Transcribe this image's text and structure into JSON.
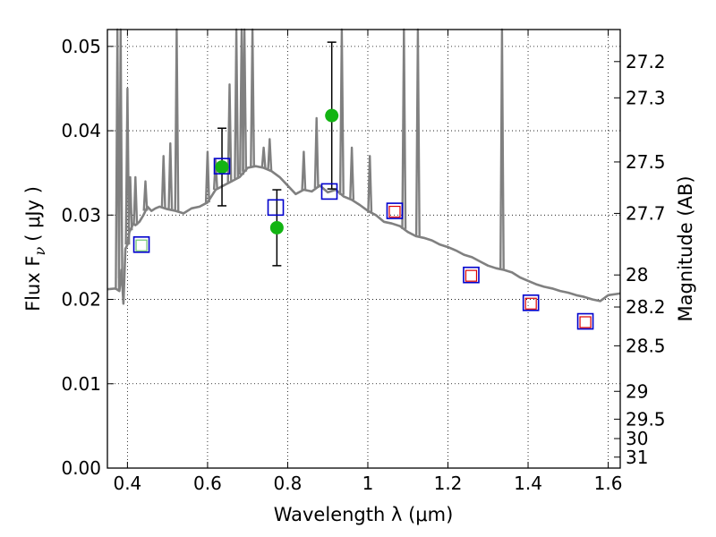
{
  "chart_data": {
    "type": "scatter",
    "xlabel": "Wavelength  λ (μm)",
    "ylabel": "Flux  F",
    "ylabel_sub": "ν",
    "ylabel_unit": "( μJy )",
    "y2label": "Magnitude (AB)",
    "xlim": [
      0.35,
      1.63
    ],
    "ylim": [
      0.0,
      0.052
    ],
    "x_ticks": [
      0.4,
      0.6,
      0.8,
      1.0,
      1.2,
      1.4,
      1.6
    ],
    "x_tick_labels": [
      "0.4",
      "0.6",
      "0.8",
      "1",
      "1.2",
      "1.4",
      "1.6"
    ],
    "y_ticks": [
      0.0,
      0.01,
      0.02,
      0.03,
      0.04,
      0.05
    ],
    "y_tick_labels": [
      "0.00",
      "0.01",
      "0.02",
      "0.03",
      "0.04",
      "0.05"
    ],
    "mag_ticks": [
      {
        "label": "27.2",
        "flux": 0.0482
      },
      {
        "label": "27.3",
        "flux": 0.0439
      },
      {
        "label": "27.5",
        "flux": 0.0363
      },
      {
        "label": "27.7",
        "flux": 0.0302
      },
      {
        "label": "28",
        "flux": 0.0229
      },
      {
        "label": "28.2",
        "flux": 0.0191
      },
      {
        "label": "28.5",
        "flux": 0.0145
      },
      {
        "label": "29",
        "flux": 0.0091
      },
      {
        "label": "29.5",
        "flux": 0.0058
      },
      {
        "label": "30",
        "flux": 0.0035
      },
      {
        "label": "31",
        "flux": 0.0013
      }
    ],
    "grid": true,
    "series": [
      {
        "type": "line",
        "color": "#808080",
        "x": [
          0.35,
          0.37,
          0.38,
          0.385,
          0.39,
          0.395,
          0.4,
          0.405,
          0.41,
          0.415,
          0.42,
          0.43,
          0.44,
          0.45,
          0.46,
          0.47,
          0.48,
          0.5,
          0.52,
          0.54,
          0.56,
          0.58,
          0.6,
          0.62,
          0.64,
          0.66,
          0.68,
          0.7,
          0.72,
          0.74,
          0.76,
          0.78,
          0.8,
          0.82,
          0.84,
          0.86,
          0.88,
          0.9,
          0.92,
          0.94,
          0.96,
          0.98,
          1.0,
          1.02,
          1.04,
          1.06,
          1.08,
          1.1,
          1.12,
          1.14,
          1.16,
          1.18,
          1.2,
          1.22,
          1.24,
          1.26,
          1.28,
          1.3,
          1.32,
          1.34,
          1.36,
          1.38,
          1.4,
          1.42,
          1.44,
          1.46,
          1.48,
          1.5,
          1.52,
          1.54,
          1.56,
          1.58,
          1.6,
          1.63
        ],
        "y": [
          0.0212,
          0.0213,
          0.021,
          0.0235,
          0.0195,
          0.026,
          0.0265,
          0.028,
          0.0285,
          0.029,
          0.0288,
          0.0292,
          0.03,
          0.031,
          0.0305,
          0.0308,
          0.031,
          0.0307,
          0.0305,
          0.0302,
          0.0308,
          0.031,
          0.0315,
          0.033,
          0.0335,
          0.034,
          0.0345,
          0.0356,
          0.0358,
          0.0356,
          0.0352,
          0.0345,
          0.0335,
          0.0325,
          0.033,
          0.0328,
          0.0335,
          0.0327,
          0.033,
          0.0322,
          0.0318,
          0.0312,
          0.0305,
          0.03,
          0.0292,
          0.029,
          0.0287,
          0.028,
          0.0275,
          0.0273,
          0.027,
          0.0265,
          0.0262,
          0.0258,
          0.0253,
          0.025,
          0.0245,
          0.024,
          0.0237,
          0.0235,
          0.0232,
          0.0226,
          0.0222,
          0.0218,
          0.0215,
          0.0213,
          0.021,
          0.0208,
          0.0205,
          0.0203,
          0.02,
          0.0198,
          0.0205,
          0.0207
        ]
      },
      {
        "type": "line-spikes",
        "color": "#808080",
        "x": [
          0.375,
          0.383,
          0.4,
          0.407,
          0.42,
          0.445,
          0.49,
          0.507,
          0.523,
          0.6,
          0.62,
          0.655,
          0.672,
          0.685,
          0.692,
          0.712,
          0.74,
          0.755,
          0.84,
          0.872,
          0.935,
          0.96,
          1.005,
          1.09,
          1.125,
          1.335
        ],
        "y": [
          0.052,
          0.052,
          0.045,
          0.0345,
          0.0345,
          0.034,
          0.037,
          0.0385,
          0.052,
          0.0375,
          0.0365,
          0.0455,
          0.052,
          0.052,
          0.052,
          0.052,
          0.038,
          0.039,
          0.0375,
          0.0415,
          0.052,
          0.038,
          0.037,
          0.052,
          0.052,
          0.052
        ]
      },
      {
        "type": "markers",
        "marker": "circle",
        "color": "#13b413",
        "x": [
          0.636,
          0.773,
          0.91
        ],
        "y": [
          0.0357,
          0.0285,
          0.0418
        ],
        "yerr": [
          0.0046,
          0.0045,
          0.0087
        ]
      },
      {
        "type": "markers",
        "marker": "square",
        "color": "#0000cc",
        "x": [
          0.435,
          0.636,
          0.77,
          0.904,
          1.067,
          1.258,
          1.407,
          1.543
        ],
        "y": [
          0.0265,
          0.0358,
          0.0309,
          0.0328,
          0.0305,
          0.0229,
          0.0196,
          0.0174
        ]
      },
      {
        "type": "markers",
        "marker": "square-small",
        "color": "#dd0000",
        "x": [
          1.067,
          1.258,
          1.407,
          1.543
        ],
        "y": [
          0.0304,
          0.0228,
          0.0195,
          0.0173
        ]
      },
      {
        "type": "markers",
        "marker": "square-small",
        "color": "#6cc46c",
        "x": [
          0.435
        ],
        "y": [
          0.0264
        ]
      }
    ]
  }
}
